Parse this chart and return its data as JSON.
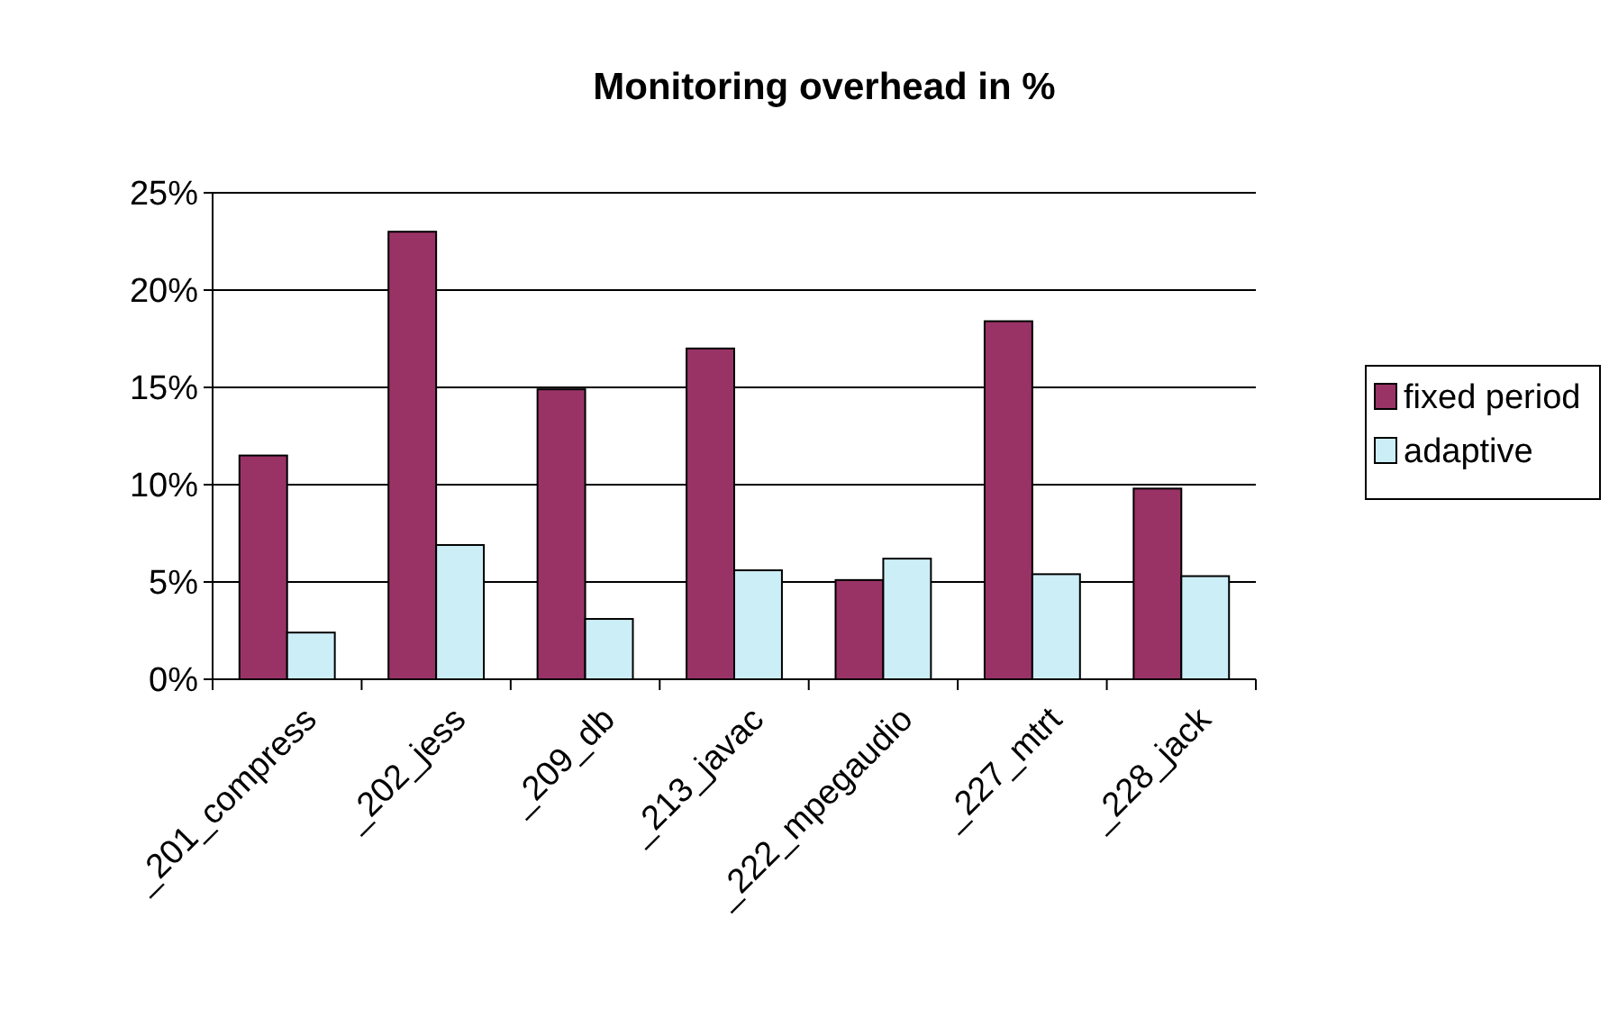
{
  "chart_data": {
    "type": "bar",
    "title": "Monitoring overhead in %",
    "categories": [
      "_201_compress",
      "_202_jess",
      "_209_db",
      "_213_javac",
      "_222_mpegaudio",
      "_227_mtrt",
      "_228_jack"
    ],
    "series": [
      {
        "name": "fixed period",
        "color": "#993366",
        "values": [
          11.5,
          23.0,
          14.9,
          17.0,
          5.1,
          18.4,
          9.8
        ]
      },
      {
        "name": "adaptive",
        "color": "#cceef6",
        "values": [
          2.4,
          6.9,
          3.1,
          5.6,
          6.2,
          5.4,
          5.3
        ]
      }
    ],
    "ylim": [
      0,
      25
    ],
    "yticks": [
      {
        "value": 0,
        "label": "0%"
      },
      {
        "value": 5,
        "label": "5%"
      },
      {
        "value": 10,
        "label": "10%"
      },
      {
        "value": 15,
        "label": "15%"
      },
      {
        "value": 20,
        "label": "20%"
      },
      {
        "value": 25,
        "label": "25%"
      }
    ],
    "grid": "y",
    "legend": "right"
  }
}
